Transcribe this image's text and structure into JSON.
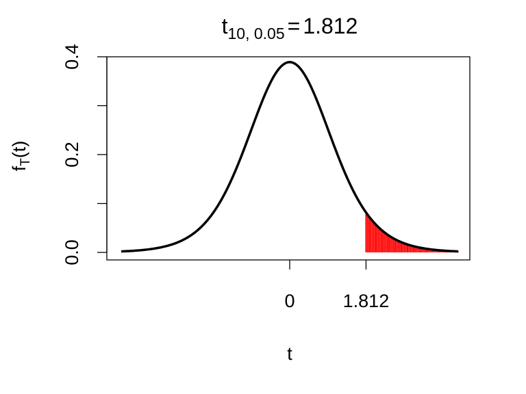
{
  "chart_data": {
    "type": "line",
    "title": {
      "base": "t",
      "subscript": "10, 0.05",
      "relation": "=",
      "value": "1.812"
    },
    "xlabel": "t",
    "ylabel": {
      "base": "f",
      "subscript": "T",
      "suffix": "(t)"
    },
    "degrees_of_freedom": 10,
    "alpha": 0.05,
    "critical_value": 1.812,
    "xlim": [
      -4,
      4
    ],
    "ylim": [
      0,
      0.4
    ],
    "x_ticks": [
      {
        "value": 0,
        "label": "0"
      },
      {
        "value": 1.812,
        "label": "1.812"
      }
    ],
    "y_ticks": [
      {
        "value": 0.0,
        "label": "0.0"
      },
      {
        "value": 0.1,
        "label": ""
      },
      {
        "value": 0.2,
        "label": "0.2"
      },
      {
        "value": 0.3,
        "label": ""
      },
      {
        "value": 0.4,
        "label": "0.4"
      }
    ],
    "series": [
      {
        "values_x": [
          -5.0,
          -4.5,
          -4.0,
          -3.5,
          -3.0,
          -2.75,
          -2.5,
          -2.25,
          -2.0,
          -1.75,
          -1.5,
          -1.25,
          -1.0,
          -0.75,
          -0.5,
          -0.25,
          0.0,
          0.25,
          0.5,
          0.75,
          1.0,
          1.25,
          1.5,
          1.75,
          2.0,
          2.25,
          2.5,
          2.75,
          3.0,
          3.5,
          4.0,
          4.5,
          5.0
        ],
        "values_y": [
          0.0004,
          0.0008,
          0.002,
          0.0047,
          0.0114,
          0.0178,
          0.0269,
          0.0395,
          0.0611,
          0.0869,
          0.1274,
          0.1762,
          0.2304,
          0.2873,
          0.3402,
          0.376,
          0.3891,
          0.376,
          0.3402,
          0.2873,
          0.2304,
          0.1762,
          0.1274,
          0.0869,
          0.0611,
          0.0395,
          0.0269,
          0.0178,
          0.0114,
          0.0047,
          0.002,
          0.0008,
          0.0004
        ]
      }
    ],
    "shaded_region": {
      "from": 1.812,
      "to": 5.0
    },
    "colors": {
      "curve": "#000000",
      "shade": "#ff0000"
    },
    "grid": false,
    "legend": "none"
  }
}
